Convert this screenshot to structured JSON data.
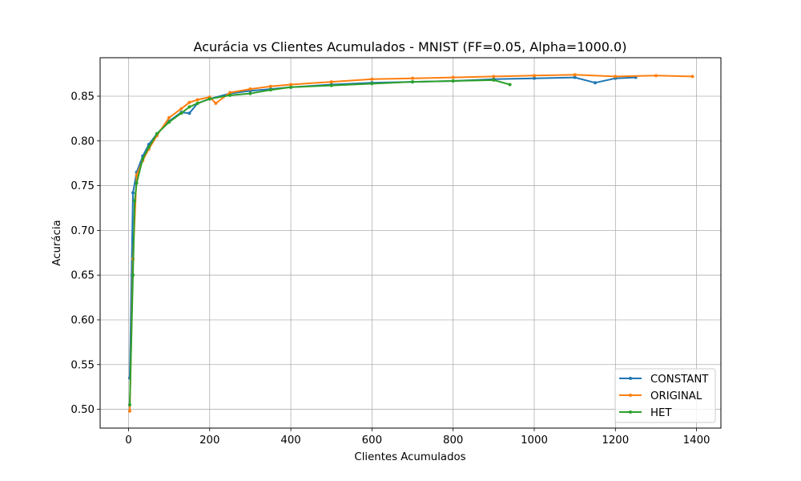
{
  "chart_data": {
    "type": "line",
    "title": "Acurácia vs Clientes Acumulados - MNIST (FF=0.05, Alpha=1000.0)",
    "xlabel": "Clientes Acumulados",
    "ylabel": "Acurácia",
    "xlim": [
      -70,
      1460
    ],
    "ylim": [
      0.479,
      0.893
    ],
    "xticks": [
      0,
      200,
      400,
      600,
      800,
      1000,
      1200,
      1400
    ],
    "yticks": [
      0.5,
      0.55,
      0.6,
      0.65,
      0.7,
      0.75,
      0.8,
      0.85
    ],
    "xtick_labels": [
      "0",
      "200",
      "400",
      "600",
      "800",
      "1000",
      "1200",
      "1400"
    ],
    "ytick_labels": [
      "0.50",
      "0.55",
      "0.60",
      "0.65",
      "0.70",
      "0.75",
      "0.80",
      "0.85"
    ],
    "grid": true,
    "legend_position": "lower-right",
    "series": [
      {
        "name": "CONSTANT",
        "color": "#1f77b4",
        "x": [
          3,
          11,
          20,
          35,
          50,
          70,
          100,
          130,
          150,
          170,
          200,
          250,
          300,
          350,
          400,
          500,
          600,
          700,
          800,
          900,
          1000,
          1100,
          1150,
          1200,
          1250
        ],
        "y": [
          0.535,
          0.742,
          0.765,
          0.783,
          0.796,
          0.808,
          0.822,
          0.832,
          0.831,
          0.842,
          0.847,
          0.853,
          0.856,
          0.858,
          0.86,
          0.863,
          0.865,
          0.866,
          0.867,
          0.869,
          0.87,
          0.871,
          0.865,
          0.87,
          0.871
        ]
      },
      {
        "name": "ORIGINAL",
        "color": "#ff7f0e",
        "x": [
          3,
          11,
          20,
          35,
          50,
          70,
          100,
          130,
          150,
          170,
          200,
          215,
          250,
          300,
          350,
          400,
          500,
          600,
          700,
          800,
          900,
          1000,
          1100,
          1200,
          1300,
          1390
        ],
        "y": [
          0.498,
          0.668,
          0.762,
          0.778,
          0.791,
          0.806,
          0.826,
          0.836,
          0.843,
          0.846,
          0.849,
          0.842,
          0.854,
          0.858,
          0.861,
          0.863,
          0.866,
          0.869,
          0.87,
          0.871,
          0.872,
          0.873,
          0.874,
          0.872,
          0.873,
          0.872
        ]
      },
      {
        "name": "HET",
        "color": "#2ca02c",
        "x": [
          3,
          11,
          15,
          20,
          35,
          50,
          70,
          100,
          130,
          150,
          170,
          200,
          250,
          300,
          350,
          400,
          500,
          600,
          700,
          800,
          900,
          940
        ],
        "y": [
          0.505,
          0.65,
          0.733,
          0.753,
          0.78,
          0.793,
          0.808,
          0.821,
          0.831,
          0.838,
          0.842,
          0.847,
          0.851,
          0.853,
          0.857,
          0.86,
          0.862,
          0.864,
          0.866,
          0.867,
          0.868,
          0.863
        ]
      }
    ]
  }
}
